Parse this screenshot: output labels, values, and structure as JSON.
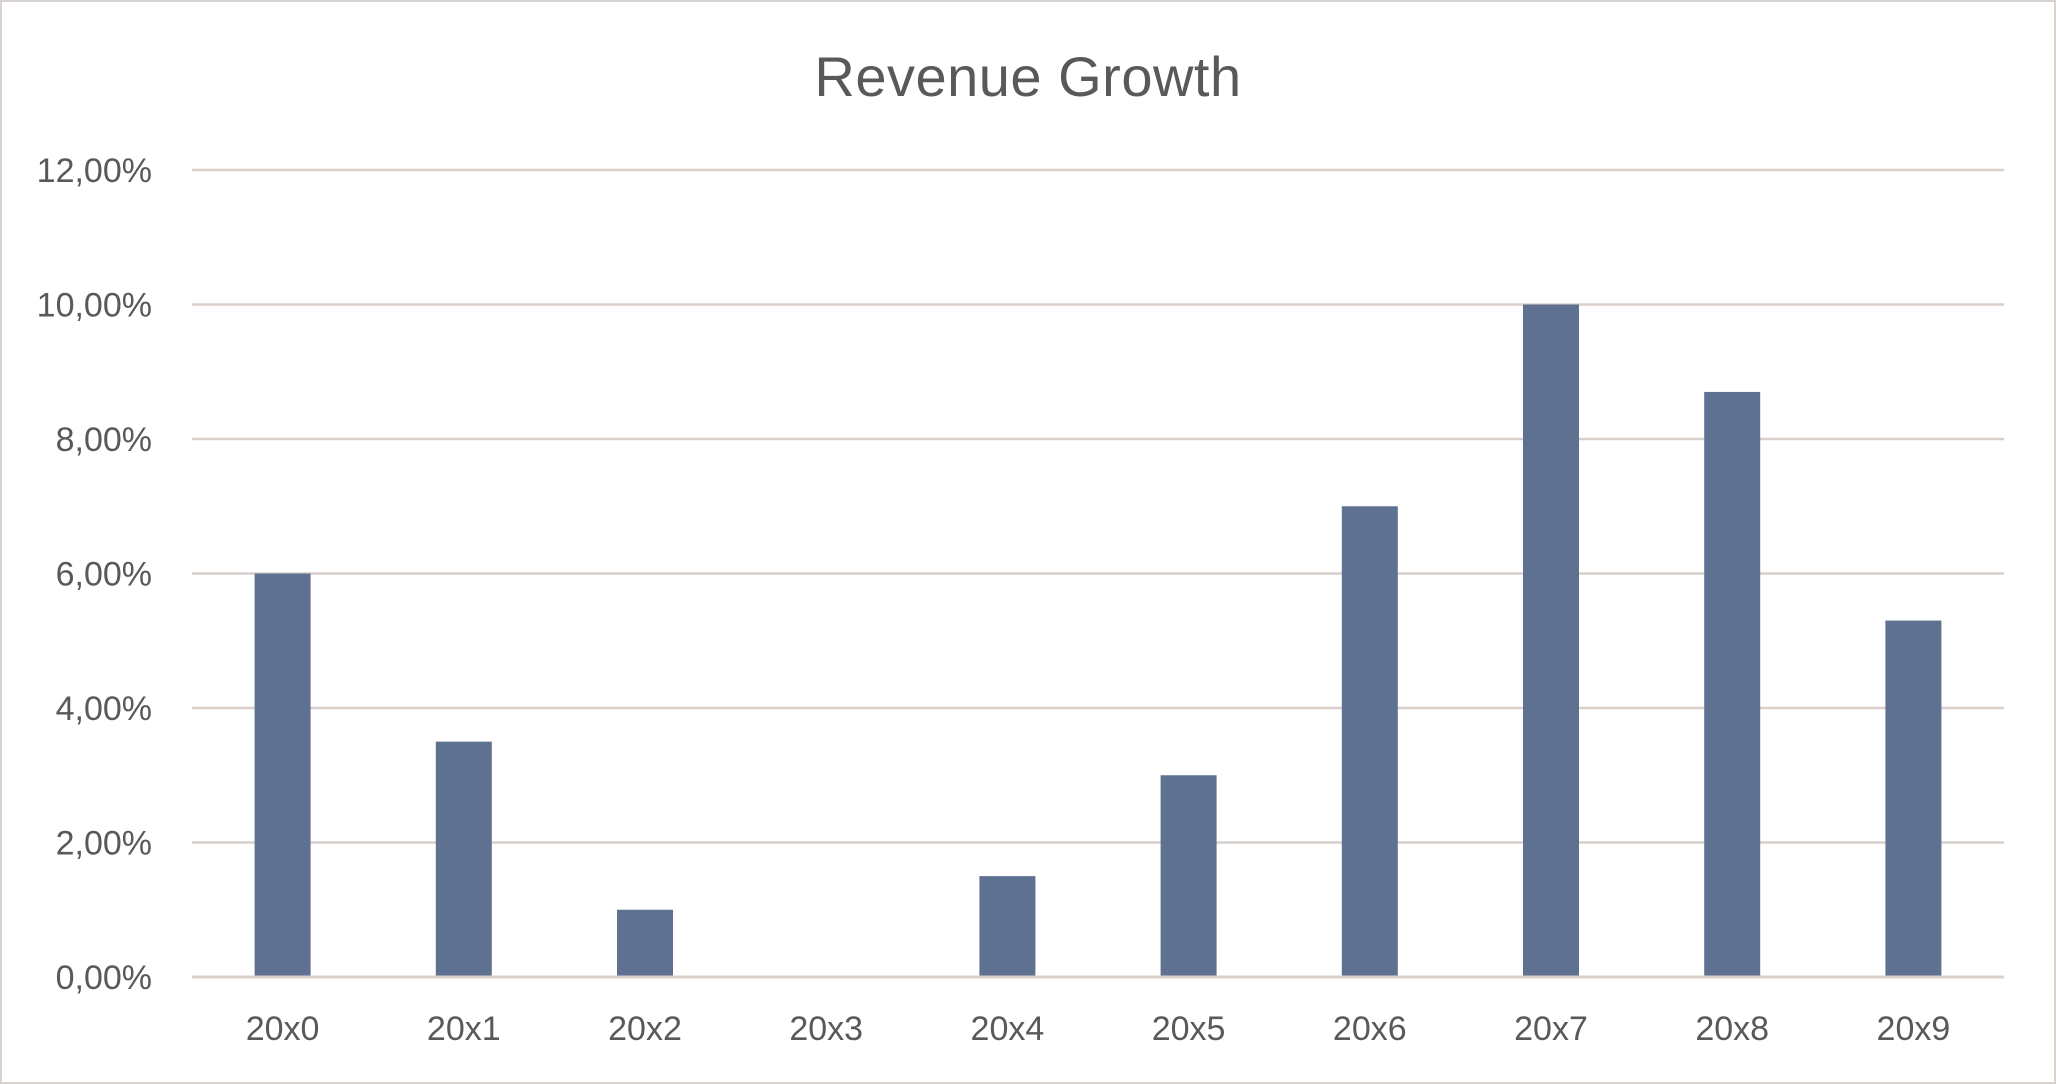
{
  "chart_data": {
    "type": "bar",
    "title": "Revenue Growth",
    "categories": [
      "20x0",
      "20x1",
      "20x2",
      "20x3",
      "20x4",
      "20x5",
      "20x6",
      "20x7",
      "20x8",
      "20x9"
    ],
    "values": [
      6.0,
      3.5,
      1.0,
      0.0,
      1.5,
      3.0,
      7.0,
      10.0,
      8.7,
      5.3
    ],
    "value_unit": "%",
    "ylim": [
      0,
      12
    ],
    "yticks": [
      0,
      2,
      4,
      6,
      8,
      10,
      12
    ],
    "ytick_labels": [
      "0,00%",
      "2,00%",
      "4,00%",
      "6,00%",
      "8,00%",
      "10,00%",
      "12,00%"
    ],
    "xlabel": "",
    "ylabel": "",
    "grid": true,
    "legend": "none",
    "bar_color": "#5f7191",
    "grid_color": "#d9d0cc",
    "text_color": "#595959"
  }
}
